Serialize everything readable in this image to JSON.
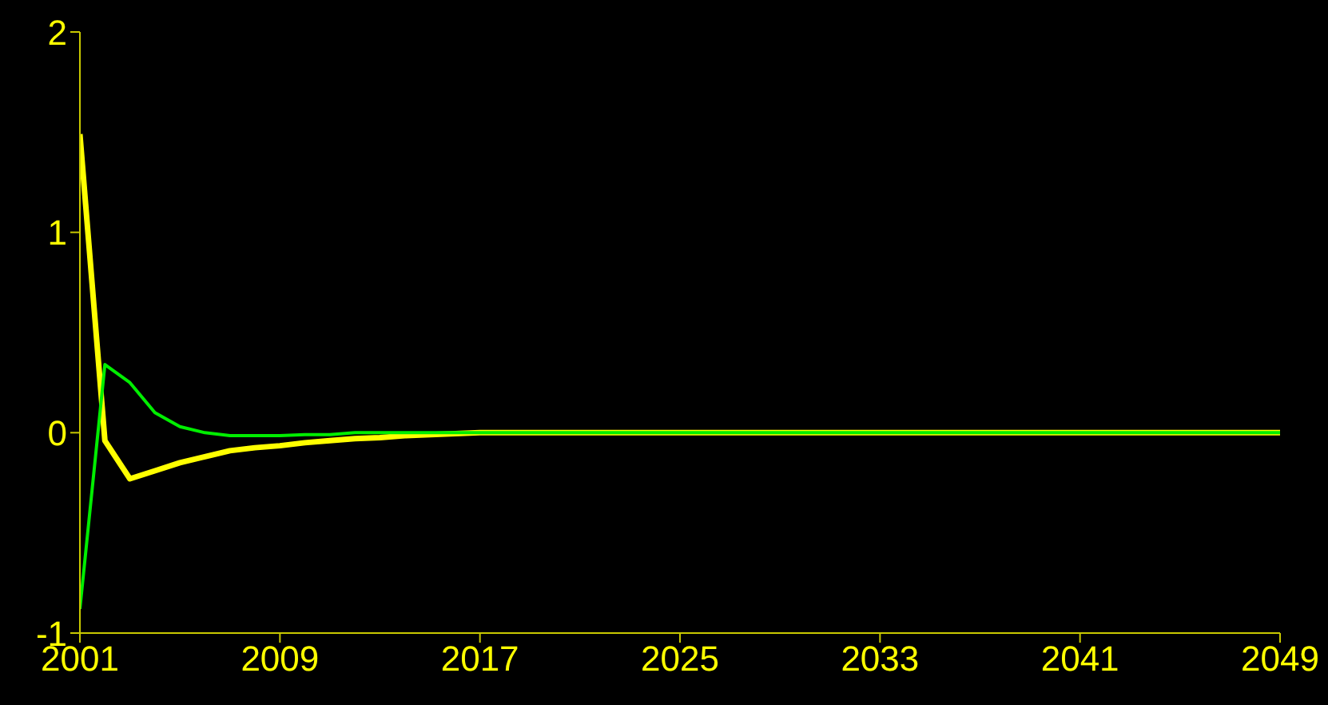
{
  "chart_data": {
    "type": "line",
    "xlim": [
      2001,
      2049
    ],
    "xticks": [
      2001,
      2009,
      2017,
      2025,
      2033,
      2041,
      2049
    ],
    "ylim": [
      -1,
      2
    ],
    "yticks": [
      -1,
      0,
      1,
      2
    ],
    "grid": false,
    "legend": false,
    "marker": "none",
    "line_style": "solid",
    "series": [
      {
        "color": "#ffff00",
        "x": [
          2001,
          2002,
          2003,
          2004,
          2005,
          2006,
          2007,
          2008,
          2009,
          2010,
          2011,
          2012,
          2013,
          2014,
          2017,
          2049
        ],
        "values": [
          1.49,
          -0.04,
          -0.23,
          -0.19,
          -0.15,
          -0.12,
          -0.09,
          -0.075,
          -0.065,
          -0.05,
          -0.04,
          -0.03,
          -0.025,
          -0.015,
          0,
          0
        ]
      },
      {
        "color": "#00ee00",
        "x": [
          2001,
          2002,
          2003,
          2004,
          2005,
          2006,
          2007,
          2008,
          2009,
          2010,
          2011,
          2012,
          2049
        ],
        "values": [
          -0.88,
          0.34,
          0.25,
          0.1,
          0.03,
          0,
          -0.015,
          -0.015,
          -0.015,
          -0.01,
          -0.01,
          0,
          0
        ]
      }
    ]
  }
}
